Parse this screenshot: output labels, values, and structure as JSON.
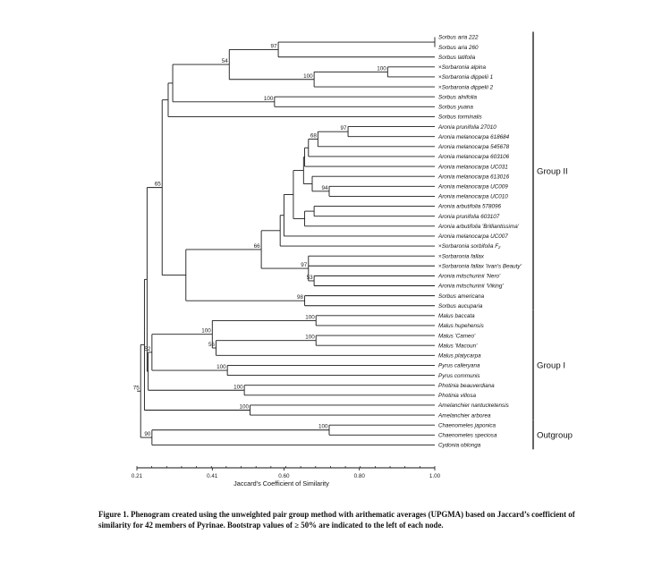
{
  "figure": {
    "caption": "Figure 1.  Phenogram created using the unweighted pair group method with arithematic averages (UPGMA) based on Jaccard’s coefficient of similarity for 42 members of Pyrinae.  Bootstrap values of ≥ 50% are indicated to the left of each node."
  },
  "chart_data": {
    "type": "dendrogram",
    "title": "",
    "xlabel": "Jaccard's Coefficient of Similarity",
    "xlim": [
      0.21,
      1.0
    ],
    "ticks": [
      0.21,
      0.41,
      0.6,
      0.8,
      1.0
    ],
    "tick_labels": [
      "0.21",
      "0.41",
      "0.60",
      "0.80",
      "1.00"
    ],
    "leaves": [
      {
        "name": "Sorbus aria 222",
        "prefix": ""
      },
      {
        "name": "Sorbus aria 260",
        "prefix": ""
      },
      {
        "name": "Sorbus latifolia",
        "prefix": ""
      },
      {
        "name": "Sorbaronia alpina",
        "prefix": "×"
      },
      {
        "name": "Sorbaronia dippelii 1",
        "prefix": "×"
      },
      {
        "name": "Sorbaronia dippelii 2",
        "prefix": "×"
      },
      {
        "name": "Sorbus alnifolia",
        "prefix": ""
      },
      {
        "name": "Sorbus yuana",
        "prefix": ""
      },
      {
        "name": "Sorbus torminalis",
        "prefix": ""
      },
      {
        "name": "Aronia prunifolia 27010",
        "prefix": ""
      },
      {
        "name": "Aronia melanocarpa 618684",
        "prefix": ""
      },
      {
        "name": "Aronia melanocarpa 545678",
        "prefix": ""
      },
      {
        "name": "Aronia melanocarpa 603106",
        "prefix": ""
      },
      {
        "name": "Aronia melanocarpa UC031",
        "prefix": ""
      },
      {
        "name": "Aronia melanocarpa 613016",
        "prefix": ""
      },
      {
        "name": "Aronia melanocarpa UC009",
        "prefix": ""
      },
      {
        "name": "Aronia melanocarpa UC010",
        "prefix": ""
      },
      {
        "name": "Aronia arbutifolia 578096",
        "prefix": ""
      },
      {
        "name": "Aronia prunifolia 603107",
        "prefix": ""
      },
      {
        "name": "Aronia arbutifolia 'Brilliantissima'",
        "prefix": ""
      },
      {
        "name": "Aronia melanocarpa UC007",
        "prefix": ""
      },
      {
        "name": "Sorbaronia sorbifolia F₂",
        "prefix": "×"
      },
      {
        "name": "Sorbaronia fallax",
        "prefix": "×"
      },
      {
        "name": "Sorbaronia fallax 'Ivan's Beauty'",
        "prefix": "×"
      },
      {
        "name": "Aronia mitschurinii 'Nero'",
        "prefix": ""
      },
      {
        "name": "Aronia mitschurinii 'Viking'",
        "prefix": ""
      },
      {
        "name": "Sorbus americana",
        "prefix": ""
      },
      {
        "name": "Sorbus aucuparia",
        "prefix": ""
      },
      {
        "name": "Malus baccata",
        "prefix": ""
      },
      {
        "name": "Malus hupehensis",
        "prefix": ""
      },
      {
        "name": "Malus 'Cameo'",
        "prefix": ""
      },
      {
        "name": "Malus 'Macoun'",
        "prefix": ""
      },
      {
        "name": "Malus platycarpa",
        "prefix": ""
      },
      {
        "name": "Pyrus calleryana",
        "prefix": ""
      },
      {
        "name": "Pyrus communis",
        "prefix": ""
      },
      {
        "name": "Photinia beauverdiana",
        "prefix": ""
      },
      {
        "name": "Photinia villosa",
        "prefix": ""
      },
      {
        "name": "Amelanchier nantucketensis",
        "prefix": ""
      },
      {
        "name": "Amelanchier arborea",
        "prefix": ""
      },
      {
        "name": "Chaenomeles japonica",
        "prefix": ""
      },
      {
        "name": "Chaenomeles speciosa",
        "prefix": ""
      },
      {
        "name": "Cydonia oblonga",
        "prefix": ""
      }
    ],
    "nodes": [
      {
        "id": "n1",
        "similarity": 1.0,
        "children": [
          "L0",
          "L1"
        ],
        "bootstrap": ""
      },
      {
        "id": "n2",
        "similarity": 0.585,
        "children": [
          "n1",
          "L2"
        ],
        "bootstrap": "97"
      },
      {
        "id": "n3",
        "similarity": 0.875,
        "children": [
          "L3",
          "L4"
        ],
        "bootstrap": "100"
      },
      {
        "id": "n4",
        "similarity": 0.68,
        "children": [
          "n3",
          "L5"
        ],
        "bootstrap": "100"
      },
      {
        "id": "n5",
        "similarity": 0.455,
        "children": [
          "n2",
          "n4"
        ],
        "bootstrap": "54"
      },
      {
        "id": "n6",
        "similarity": 0.575,
        "children": [
          "L6",
          "L7"
        ],
        "bootstrap": "100"
      },
      {
        "id": "n7",
        "similarity": 0.305,
        "children": [
          "n5",
          "n6"
        ],
        "bootstrap": ""
      },
      {
        "id": "n8",
        "similarity": 0.293,
        "children": [
          "n7",
          "L8"
        ],
        "bootstrap": ""
      },
      {
        "id": "n9",
        "similarity": 0.77,
        "children": [
          "L9",
          "L10"
        ],
        "bootstrap": "97"
      },
      {
        "id": "n10",
        "similarity": 0.69,
        "children": [
          "n9",
          "L11"
        ],
        "bootstrap": "68"
      },
      {
        "id": "n11",
        "similarity": 0.665,
        "children": [
          "n10",
          "L12"
        ],
        "bootstrap": ""
      },
      {
        "id": "n12",
        "similarity": 0.655,
        "children": [
          "n11",
          "L13"
        ],
        "bootstrap": ""
      },
      {
        "id": "n13",
        "similarity": 0.72,
        "children": [
          "L15",
          "L16"
        ],
        "bootstrap": "94"
      },
      {
        "id": "n14",
        "similarity": 0.675,
        "children": [
          "L14",
          "n13"
        ],
        "bootstrap": ""
      },
      {
        "id": "n15",
        "similarity": 0.652,
        "children": [
          "n12",
          "n14"
        ],
        "bootstrap": ""
      },
      {
        "id": "n16",
        "similarity": 0.68,
        "children": [
          "L17",
          "L18"
        ],
        "bootstrap": ""
      },
      {
        "id": "n17",
        "similarity": 0.655,
        "children": [
          "n16",
          "L19"
        ],
        "bootstrap": ""
      },
      {
        "id": "n18",
        "similarity": 0.625,
        "children": [
          "n15",
          "n17"
        ],
        "bootstrap": ""
      },
      {
        "id": "n19",
        "similarity": 0.6,
        "children": [
          "n18",
          "L20"
        ],
        "bootstrap": ""
      },
      {
        "id": "n20",
        "similarity": 0.59,
        "children": [
          "n19",
          "L21"
        ],
        "bootstrap": ""
      },
      {
        "id": "n21",
        "similarity": 0.68,
        "children": [
          "L24",
          "L25"
        ],
        "bootstrap": "53"
      },
      {
        "id": "n22",
        "similarity": 0.665,
        "children": [
          "L22",
          "L23",
          "n21"
        ],
        "bootstrap": "97"
      },
      {
        "id": "n23",
        "similarity": 0.54,
        "children": [
          "n20",
          "n22"
        ],
        "bootstrap": "66"
      },
      {
        "id": "n24",
        "similarity": 0.655,
        "children": [
          "L26",
          "L27"
        ],
        "bootstrap": "98"
      },
      {
        "id": "n25",
        "similarity": 0.34,
        "children": [
          "n23",
          "n24"
        ],
        "bootstrap": ""
      },
      {
        "id": "n26",
        "similarity": 0.277,
        "children": [
          "n8",
          "n25"
        ],
        "bootstrap": "65"
      },
      {
        "id": "n27",
        "similarity": 0.685,
        "children": [
          "L28",
          "L29"
        ],
        "bootstrap": "100"
      },
      {
        "id": "n28",
        "similarity": 0.685,
        "children": [
          "L30",
          "L31"
        ],
        "bootstrap": "100"
      },
      {
        "id": "n29",
        "similarity": 0.42,
        "children": [
          "n28",
          "L32"
        ],
        "bootstrap": "56"
      },
      {
        "id": "n30",
        "similarity": 0.41,
        "children": [
          "n27",
          "n29"
        ],
        "bootstrap": "100"
      },
      {
        "id": "n31",
        "similarity": 0.45,
        "children": [
          "L33",
          "L34"
        ],
        "bootstrap": "100"
      },
      {
        "id": "n32",
        "similarity": 0.25,
        "children": [
          "n30",
          "n31"
        ],
        "bootstrap": "52"
      },
      {
        "id": "n33",
        "similarity": 0.495,
        "children": [
          "L35",
          "L36"
        ],
        "bootstrap": "100"
      },
      {
        "id": "n34",
        "similarity": 0.24,
        "children": [
          "n32",
          "n33"
        ],
        "bootstrap": ""
      },
      {
        "id": "n35",
        "similarity": 0.237,
        "children": [
          "n26",
          "n34"
        ],
        "bootstrap": ""
      },
      {
        "id": "n36",
        "similarity": 0.51,
        "children": [
          "L37",
          "L38"
        ],
        "bootstrap": "100"
      },
      {
        "id": "n37",
        "similarity": 0.23,
        "children": [
          "n35",
          "n36"
        ],
        "bootstrap": ""
      },
      {
        "id": "n38",
        "similarity": 0.72,
        "children": [
          "L39",
          "L40"
        ],
        "bootstrap": "100"
      },
      {
        "id": "n39",
        "similarity": 0.25,
        "children": [
          "n38",
          "L41"
        ],
        "bootstrap": "90"
      },
      {
        "id": "n40",
        "similarity": 0.22,
        "children": [
          "n37",
          "n39"
        ],
        "bootstrap": "75"
      }
    ],
    "groups": [
      {
        "label": "Group II",
        "from": 0,
        "to": 27
      },
      {
        "label": "Group I",
        "from": 28,
        "to": 38
      },
      {
        "label": "Outgroup",
        "from": 39,
        "to": 41
      }
    ],
    "line_color": "#1a1a1a"
  }
}
